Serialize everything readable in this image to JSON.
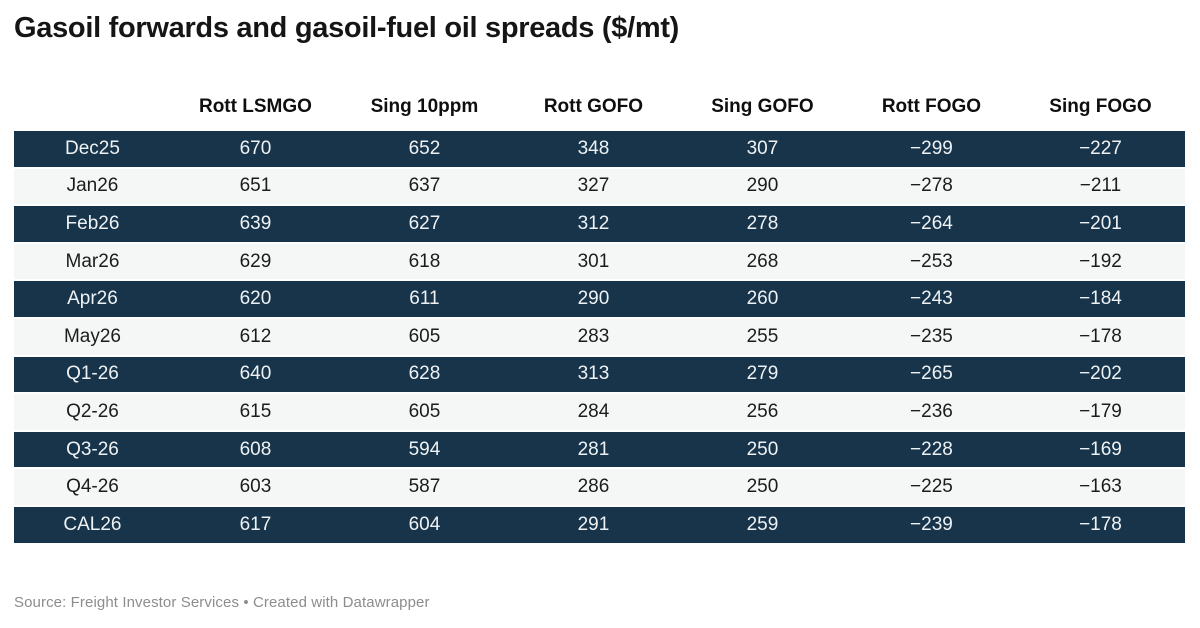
{
  "title": "Gasoil forwards and gasoil-fuel oil spreads ($/mt)",
  "footer": {
    "text": "Source: Freight Investor Services • Created with Datawrapper"
  },
  "colors": {
    "dark_row_bg": "#17344a",
    "dark_row_text": "#eef2f4",
    "light_row_bg": "#f5f6f6",
    "light_row_text": "#1c1c1c",
    "title_text": "#151515",
    "footer_text": "#8d8d8d",
    "row_separator": "#ffffff"
  },
  "chart_data": {
    "type": "table",
    "title": "Gasoil forwards and gasoil-fuel oil spreads ($/mt)",
    "columns": [
      "",
      "Rott LSMGO",
      "Sing 10ppm",
      "Rott GOFO",
      "Sing GOFO",
      "Rott FOGO",
      "Sing FOGO"
    ],
    "rows": [
      [
        "Dec25",
        670,
        652,
        348,
        307,
        -299,
        -227
      ],
      [
        "Jan26",
        651,
        637,
        327,
        290,
        -278,
        -211
      ],
      [
        "Feb26",
        639,
        627,
        312,
        278,
        -264,
        -201
      ],
      [
        "Mar26",
        629,
        618,
        301,
        268,
        -253,
        -192
      ],
      [
        "Apr26",
        620,
        611,
        290,
        260,
        -243,
        -184
      ],
      [
        "May26",
        612,
        605,
        283,
        255,
        -235,
        -178
      ],
      [
        "Q1-26",
        640,
        628,
        313,
        279,
        -265,
        -202
      ],
      [
        "Q2-26",
        615,
        605,
        284,
        256,
        -236,
        -179
      ],
      [
        "Q3-26",
        608,
        594,
        281,
        250,
        -228,
        -169
      ],
      [
        "Q4-26",
        603,
        587,
        286,
        250,
        -225,
        -163
      ],
      [
        "CAL26",
        617,
        604,
        291,
        259,
        -239,
        -178
      ]
    ],
    "row_stripe_pattern": "first row dark, alternating dark/light",
    "source": "Freight Investor Services",
    "tool": "Created with Datawrapper"
  }
}
